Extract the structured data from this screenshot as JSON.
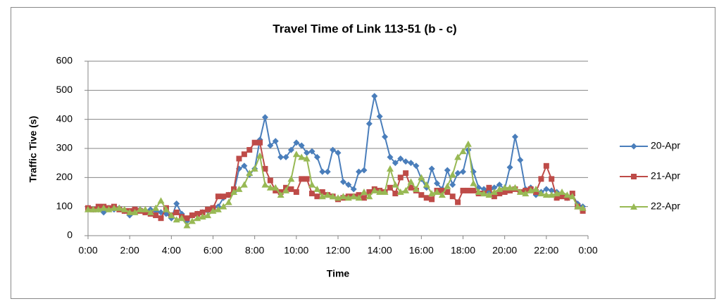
{
  "chart_data": {
    "type": "line",
    "title": "Travel Time of Link 113-51 (b - c)",
    "x_label": "Time",
    "y_label": "Traffic Tive (s)",
    "x": [
      0,
      0.25,
      0.5,
      0.75,
      1,
      1.25,
      1.5,
      1.75,
      2,
      2.25,
      2.5,
      2.75,
      3,
      3.25,
      3.5,
      3.75,
      4,
      4.25,
      4.5,
      4.75,
      5,
      5.25,
      5.5,
      5.75,
      6,
      6.25,
      6.5,
      6.75,
      7,
      7.25,
      7.5,
      7.75,
      8,
      8.25,
      8.5,
      8.75,
      9,
      9.25,
      9.5,
      9.75,
      10,
      10.25,
      10.5,
      10.75,
      11,
      11.25,
      11.5,
      11.75,
      12,
      12.25,
      12.5,
      12.75,
      13,
      13.25,
      13.5,
      13.75,
      14,
      14.25,
      14.5,
      14.75,
      15,
      15.25,
      15.5,
      15.75,
      16,
      16.25,
      16.5,
      16.75,
      17,
      17.25,
      17.5,
      17.75,
      18,
      18.25,
      18.5,
      18.75,
      19,
      19.25,
      19.5,
      19.75,
      20,
      20.25,
      20.5,
      20.75,
      21,
      21.25,
      21.5,
      21.75,
      22,
      22.25,
      22.5,
      22.75,
      23,
      23.25,
      23.5,
      23.75
    ],
    "series": [
      {
        "name": "20-Apr",
        "color": "#4a7ebb",
        "marker": "diamond",
        "values": [
          95,
          90,
          90,
          80,
          95,
          90,
          95,
          85,
          70,
          85,
          90,
          85,
          90,
          85,
          80,
          75,
          60,
          110,
          75,
          50,
          70,
          75,
          80,
          85,
          95,
          100,
          130,
          140,
          150,
          230,
          240,
          210,
          230,
          330,
          407,
          310,
          325,
          270,
          270,
          295,
          320,
          310,
          285,
          290,
          270,
          220,
          220,
          295,
          285,
          185,
          175,
          160,
          220,
          225,
          385,
          480,
          410,
          340,
          270,
          250,
          265,
          255,
          250,
          240,
          195,
          165,
          230,
          180,
          160,
          225,
          175,
          215,
          220,
          295,
          220,
          165,
          160,
          150,
          165,
          175,
          160,
          235,
          340,
          260,
          160,
          165,
          140,
          150,
          160,
          155,
          150,
          140,
          130,
          140,
          110,
          100
        ]
      },
      {
        "name": "21-Apr",
        "color": "#be4b48",
        "marker": "square",
        "values": [
          95,
          90,
          100,
          100,
          95,
          100,
          90,
          85,
          85,
          90,
          85,
          80,
          75,
          70,
          60,
          95,
          70,
          80,
          65,
          60,
          70,
          75,
          80,
          90,
          95,
          135,
          135,
          140,
          160,
          265,
          280,
          295,
          320,
          320,
          230,
          190,
          155,
          150,
          165,
          160,
          150,
          195,
          195,
          145,
          135,
          150,
          140,
          135,
          125,
          130,
          135,
          135,
          140,
          130,
          150,
          160,
          155,
          150,
          165,
          145,
          200,
          215,
          165,
          155,
          140,
          130,
          125,
          155,
          155,
          150,
          135,
          115,
          155,
          155,
          155,
          145,
          145,
          165,
          135,
          145,
          150,
          155,
          160,
          150,
          155,
          160,
          150,
          195,
          240,
          195,
          130,
          135,
          130,
          145,
          100,
          85
        ]
      },
      {
        "name": "22-Apr",
        "color": "#98b954",
        "marker": "triangle",
        "values": [
          90,
          90,
          90,
          95,
          90,
          95,
          95,
          90,
          80,
          80,
          90,
          90,
          80,
          95,
          120,
          90,
          70,
          55,
          60,
          35,
          50,
          60,
          65,
          70,
          85,
          90,
          100,
          115,
          150,
          160,
          175,
          215,
          230,
          275,
          175,
          165,
          165,
          140,
          155,
          195,
          280,
          270,
          265,
          175,
          160,
          135,
          140,
          135,
          130,
          135,
          130,
          135,
          130,
          150,
          135,
          155,
          150,
          150,
          230,
          175,
          150,
          155,
          185,
          160,
          200,
          175,
          145,
          150,
          140,
          170,
          210,
          270,
          290,
          315,
          180,
          150,
          145,
          140,
          150,
          160,
          165,
          165,
          165,
          150,
          145,
          155,
          160,
          145,
          140,
          140,
          145,
          150,
          140,
          135,
          100,
          95
        ]
      }
    ],
    "xlim": [
      0,
      24
    ],
    "xticks": [
      {
        "value": 0,
        "label": "0:00"
      },
      {
        "value": 2,
        "label": "2:00"
      },
      {
        "value": 4,
        "label": "4:00"
      },
      {
        "value": 6,
        "label": "6:00"
      },
      {
        "value": 8,
        "label": "8:00"
      },
      {
        "value": 10,
        "label": "10:00"
      },
      {
        "value": 12,
        "label": "12:00"
      },
      {
        "value": 14,
        "label": "14:00"
      },
      {
        "value": 16,
        "label": "16:00"
      },
      {
        "value": 18,
        "label": "18:00"
      },
      {
        "value": 20,
        "label": "20:00"
      },
      {
        "value": 22,
        "label": "22:00"
      },
      {
        "value": 24,
        "label": "0:00"
      }
    ],
    "ylim": [
      0,
      600
    ],
    "yticks": [
      0,
      100,
      200,
      300,
      400,
      500,
      600
    ],
    "grid": true,
    "legend": "right"
  }
}
